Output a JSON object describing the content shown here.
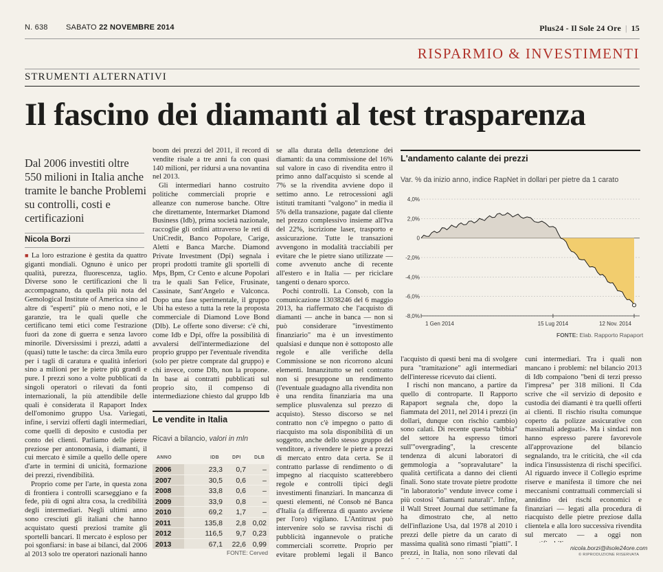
{
  "header": {
    "issue": "N. 638",
    "date_prefix": "SABATO",
    "date": "22 NOVEMBRE 2014",
    "publication": "Plus24 - Il Sole 24 Ore",
    "page": "15"
  },
  "section": "RISPARMIO & INVESTIMENTI",
  "kicker": "STRUMENTI ALTERNATIVI",
  "headline": "Il fascino dei diamanti al test trasparenza",
  "subtitle": "Dal 2006 investiti oltre 550 milioni in Italia anche tramite le banche Problemi su controlli, costi e certificazioni",
  "author": "Nicola Borzi",
  "article": {
    "col1": [
      "La loro estrazione è gestita da quattro giganti mondiali. Ognuno è unico per qualità, purezza, fluorescenza, taglio. Diverse sono le certificazioni che li accompagnano, da quella più nota del Gemological Institute of America sino ad altre di \"esperti\" più o meno noti, e le garanzie, tra le quali quelle che certificano temi etici come l'estrazione fuori da zone di guerra e senza lavoro minorile. Diversissimi i prezzi, adatti a (quasi) tutte le tasche: da circa 3mila euro per i tagli di caratura e qualità inferiori sino a milioni per le pietre più grandi e pure. I prezzi sono a volte pubblicati da singoli operatori o rilevati da fonti internazionali, la più attendibile delle quali è considerata il Rapaport Index dell'omonimo gruppo Usa. Variegati, infine, i servizi offerti dagli intermediari, come quelli di deposito e custodia per conto dei clienti. Parliamo delle pietre preziose per antonomasia, i diamanti, il cui mercato è simile a quello delle opere d'arte in termini di unicità, formazione dei prezzi, rivendibilità.",
      "Proprio come per l'arte, in questa zona di frontiera i controlli scarseggiano e fa fede, più di ogni altra cosa, la credibilità degli intermediari. Negli ultimi anno sono cresciuti gli italiani che hanno acquistato questi preziosi tramite gli sportelli bancari. Il mercato è esploso per poi sgonfiarsi: in base ai bilanci, dal 2006 al 2013 solo tre operatori nazionali hanno fatturato oltre 550 milioni. Complice il"
    ],
    "col2": [
      "boom dei prezzi del 2011, il record di vendite risale a tre anni fa con quasi 140 milioni, per ridursi a una novantina nel 2013.",
      "Gli intermediari hanno costruito politiche commerciali proprie e alleanze con numerose banche. Oltre che direttamente, Intermarket Diamond Business (Idb), prima società nazionale, raccoglie gli ordini attraverso le reti di UniCredit, Banco Popolare, Carige, Aletti e Banca Marche. Diamond Private Investment (Dpi) segnala i propri prodotti tramite gli sportelli di Mps, Bpm, Cr Cento e alcune Popolari tra le quali San Felice, Frusinate, Cassinate, Sant'Angelo e Valconca. Dopo una fase sperimentale, il gruppo Ubi ha esteso a tutta la rete la proposta commerciale di Diamond Love Bond (Dlb). Le offerte sono diverse: c'è chi, come Idb e Dpi, offre la possibilità di avvalersi dell'intermediazione del proprio gruppo per l'eventuale rivendita (solo per pietre comprate dal gruppo) e chi invece, come Dlb, non la propone. In base ai contratti pubblicati sul proprio sito, il compenso di intermediazione chiesto dal gruppo Idb per la rivendita cala in ba-"
    ],
    "col3": [
      "se alla durata della detenzione dei diamanti: da una commissione del 16% sul valore in caso di rivendita entro il primo anno dall'acquisto si scende al 7% se la rivendita avviene dopo il settimo anno. Le retrocessioni agli istituti tramitanti \"valgono\" in media il 5% della transazione, pagate dal cliente nel prezzo complessivo insieme all'Iva del 22%, iscrizione laser, trasporto e assicurazione. Tutte le transazioni avvengono in modalità tracciabili per evitare che le pietre siano utilizzate — come avvenuto anche di recente all'estero e in Italia — per riciclare tangenti o denaro sporco.",
      "Pochi controlli. La Consob, con la comunicazione 13038246 del 6 maggio 2013, ha riaffermato che l'acquisto di diamanti — anche in banca — non si può considerare \"investimento finanziario\" ma è un investimento qualsiasi e dunque non è sottoposto alle regole e alle verifiche della Commissione se non ricorrono alcuni elementi. Innanzitutto se nel contratto non si presuppone un rendimento (l'eventuale guadagno alla rivendita non è una rendita finanziaria ma una semplice plusvalenza sul prezzo di acquisto). Stesso discorso se nel contratto non c'è impegno o patto di riacquisto ma sola disponibilità di un soggetto, anche dello stesso gruppo del venditore, a rivendere le pietre a prezzi di mercato entro data certa. Se il contratto parlasse di rendimento o di impegno al riacquisto scatterebbero regole e controlli tipici degli investimenti finanziari. In mancanza di questi elementi, né Consob né Banca d'Italia (a differenza di quanto avviene per l'oro) vigilano. L'Antitrust può intervenire solo se ravvisa rischi di pubblicità ingannevole o pratiche commerciali scorrette. Proprio per evitare problemi legali il Banco Popolare, con una circolare datata 2011 e ripresa di recente dalla Fisac/Cgil, ha imposto ai dipendenti di non promuovere mai ai clienti"
    ],
    "col4": [
      "l'acquisto di questi beni ma di svolgere pura \"tramitazione\" agli intermediari dell'interesse ricevuto dai clienti.",
      "I rischi non mancano, a partire da quello di controparte. Il Rapporto Rapaport segnala che, dopo la fiammata del 2011, nel 2014 i prezzi (in dollari, dunque con rischio cambio) sono calati. Di recente questa \"bibbia\" del settore ha espresso timori sull'\"overgrading\", la crescente tendenza di alcuni laboratori di gemmologia a \"sopravalutare\" la qualità certificata a danno dei clienti finali. Sono state trovate pietre prodotte \"in laboratorio\" vendute invece come i più costosi \"diamanti naturali\". Infine, il Wall Street Journal due settimane fa ha dimostrato che, al netto dell'inflazione Usa, dal 1978 al 2010 i prezzi delle pietre da un carato di massima qualità sono rimasti \"piatti\". I prezzi, in Italia, non sono rilevati dal Sole 24 Ore, che si limita a riportare le indicazioni provenienti da al-"
    ],
    "col5": [
      "cuni intermediari. Tra i quali non mancano i problemi: nel bilancio 2013 di Idb compaiono \"beni di terzi presso l'impresa\" per 318 milioni. Il Cda scrive che «il servizio di deposito e custodia dei diamanti è tra quelli offerti ai clienti. Il rischio risulta comunque coperto da polizze assicurative con massimali adeguati». Ma i sindaci non hanno espresso parere favorevole all'approvazione del bilancio segnalando, tra le criticità, che «il cda indica l'insussistenza di rischi specifici. Al riguardo invece il Collegio esprime riserve e manifesta il timore che nei meccanismi contrattuali commerciali si annidino dei rischi economici e finanziari — legati alla procedura di riacquisto delle pietre preziose dalla clientela e alla loro successiva rivendita sul mercato — a oggi non quantificabili»."
    ]
  },
  "email": "nicola.borzi@ilsole24ore.com",
  "rights": "© RIPRODUZIONE RISERVATA",
  "chart_data": {
    "type": "area",
    "title": "L'andamento calante dei prezzi",
    "subtitle": "Var. % da inizio anno, indice RapNet in dollari per pietre da 1 carato",
    "source": "Elab. Rapporto Rapaport",
    "source_label": "FONTE:",
    "ylim": [
      -8,
      4
    ],
    "yticks": [
      "4,0%",
      "2,0%",
      "0",
      "-2,0%",
      "-4,0%",
      "-6,0%",
      "-8,0%"
    ],
    "xticks": [
      "1 Gen 2014",
      "15 Lug 2014",
      "12 Nov. 2014"
    ],
    "x": [
      "2014-01-01",
      "2014-02-01",
      "2014-03-01",
      "2014-04-01",
      "2014-05-01",
      "2014-06-01",
      "2014-07-15",
      "2014-08-15",
      "2014-09-15",
      "2014-10-15",
      "2014-11-12"
    ],
    "values": [
      0,
      0.9,
      1.4,
      1.9,
      2.5,
      2.2,
      1.2,
      -1.6,
      -3.2,
      -5.0,
      -6.9
    ],
    "colors": {
      "positive_fill": "#dcd6cc",
      "negative_fill": "#f2cd6e",
      "line": "#1d1d1b"
    }
  },
  "table": {
    "title": "Le vendite in Italia",
    "subtitle_a": "Ricavi a bilancio,",
    "subtitle_b": "valori in mln",
    "columns": [
      "ANNO",
      "IDB",
      "DPI",
      "DLB"
    ],
    "rows": [
      [
        "2006",
        "23,3",
        "0,7",
        "–"
      ],
      [
        "2007",
        "30,5",
        "0,6",
        "–"
      ],
      [
        "2008",
        "33,8",
        "0,6",
        "–"
      ],
      [
        "2009",
        "33,9",
        "0,8",
        "–"
      ],
      [
        "2010",
        "69,2",
        "1,7",
        "–"
      ],
      [
        "2011",
        "135,8",
        "2,8",
        "0,02"
      ],
      [
        "2012",
        "116,5",
        "9,7",
        "0,23"
      ],
      [
        "2013",
        "67,1",
        "22,6",
        "0,99"
      ]
    ],
    "source": "FONTE: Cerved",
    "colors": {
      "year_bg": "#d9d3c8",
      "row_bg": "#e9e5dc"
    }
  }
}
